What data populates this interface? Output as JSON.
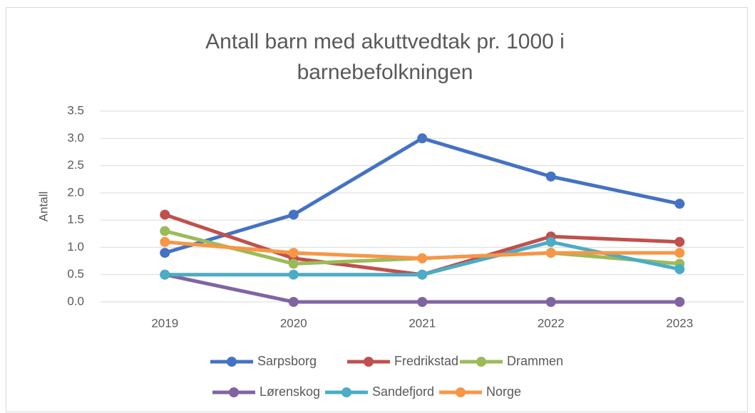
{
  "chart_data": {
    "type": "line",
    "title": [
      "Antall barn med akuttvedtak pr. 1000 i",
      "barnebefolkningen"
    ],
    "ylabel": "Antall",
    "categories": [
      "2019",
      "2020",
      "2021",
      "2022",
      "2023"
    ],
    "series": [
      {
        "name": "Sarpsborg",
        "color": "#4472c4",
        "values": [
          0.9,
          1.6,
          3.0,
          2.3,
          1.8
        ]
      },
      {
        "name": "Fredrikstad",
        "color": "#c0504d",
        "values": [
          1.6,
          0.8,
          0.5,
          1.2,
          1.1
        ]
      },
      {
        "name": "Drammen",
        "color": "#9bbb59",
        "values": [
          1.3,
          0.7,
          0.8,
          0.9,
          0.7
        ]
      },
      {
        "name": "Lørenskog",
        "color": "#8064a2",
        "values": [
          0.5,
          0,
          0,
          0,
          0
        ]
      },
      {
        "name": "Sandefjord",
        "color": "#4bacc6",
        "values": [
          0.5,
          0.5,
          0.5,
          1.1,
          0.6
        ]
      },
      {
        "name": "Norge",
        "color": "#f79646",
        "values": [
          1.1,
          0.9,
          0.8,
          0.9,
          0.9
        ]
      }
    ],
    "ylim": [
      0,
      3.5
    ],
    "yticks": [
      {
        "value": 0,
        "label": "0.0"
      },
      0.5,
      {
        "value": 1,
        "label": "1.0"
      },
      1.5,
      {
        "value": 2,
        "label": "2.0"
      },
      2.5,
      {
        "value": 3,
        "label": "3.0"
      },
      3.5
    ],
    "grid": true,
    "legend": "bottom"
  }
}
